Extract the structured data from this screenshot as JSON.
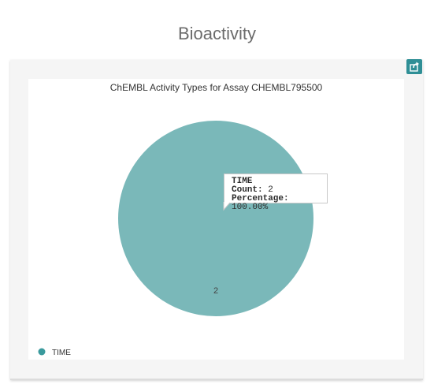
{
  "page": {
    "title": "Bioactivity"
  },
  "colors": {
    "slice": "#7ab8b9",
    "accent": "#2f8f96",
    "legend_marker": "#3a9a9d"
  },
  "icons": {
    "share": "share-icon"
  },
  "tooltip": {
    "name": "TIME",
    "count_label": "Count:",
    "count_value": "2",
    "percentage_label": "Percentage:",
    "percentage_value": "100.00%"
  },
  "chart_data": {
    "type": "pie",
    "title": "ChEMBL Activity Types for Assay CHEMBL795500",
    "slices": [
      {
        "label": "TIME",
        "value": 2,
        "data_label": "2",
        "color": "#7ab8b9"
      }
    ],
    "legend": {
      "placement": "bottom-left",
      "entries": [
        "TIME"
      ]
    }
  }
}
